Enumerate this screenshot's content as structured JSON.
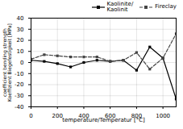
{
  "chart_data": {
    "type": "line",
    "xlabel": "temperature/Temperatur [°C]",
    "ylabel": "coefficient bending strength\nKoeffizient Biegefestigkeit [MPa]",
    "x": [
      0,
      100,
      200,
      300,
      400,
      500,
      600,
      700,
      800,
      900,
      1000,
      1100
    ],
    "series": [
      {
        "name": "Kaolinite/\nKaolinit",
        "color": "#000000",
        "line_style": "solid",
        "marker": "square",
        "values": [
          2,
          1,
          -1,
          -4,
          0,
          2,
          1,
          2,
          -7,
          14,
          4,
          -33
        ]
      },
      {
        "name": "Fireclay",
        "color": "#444444",
        "line_style": "dashed",
        "marker": "square",
        "values": [
          3,
          7,
          6,
          5,
          5,
          5,
          1,
          2,
          9,
          -6,
          4,
          26
        ]
      }
    ],
    "xlim": [
      0,
      1100
    ],
    "ylim": [
      -40,
      40
    ],
    "xticks": [
      0,
      200,
      400,
      600,
      800,
      1000
    ],
    "yticks": [
      -40,
      -30,
      -20,
      -10,
      0,
      10,
      20,
      30,
      40
    ],
    "grid": true,
    "legend": "upper right"
  }
}
